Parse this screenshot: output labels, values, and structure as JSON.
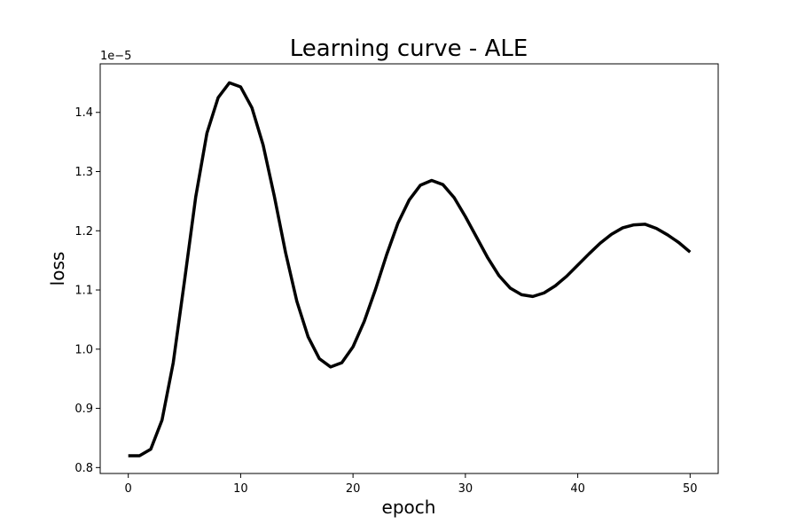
{
  "chart_data": {
    "type": "line",
    "title": "Learning curve - ALE",
    "xlabel": "epoch",
    "ylabel": "loss",
    "offset_text": "1e−5",
    "xlim": [
      -2.5,
      52.5
    ],
    "ylim": [
      0.79,
      1.482
    ],
    "xticks": [
      0,
      10,
      20,
      30,
      40,
      50
    ],
    "xtick_labels": [
      "0",
      "10",
      "20",
      "30",
      "40",
      "50"
    ],
    "yticks": [
      0.8,
      0.9,
      1.0,
      1.1,
      1.2,
      1.3,
      1.4
    ],
    "ytick_labels": [
      "0.8",
      "0.9",
      "1.0",
      "1.1",
      "1.2",
      "1.3",
      "1.4"
    ],
    "grid": false,
    "series": [
      {
        "color": "#000000",
        "x": [
          0,
          1,
          2,
          3,
          4,
          5,
          6,
          7,
          8,
          9,
          10,
          11,
          12,
          13,
          14,
          15,
          16,
          17,
          18,
          19,
          20,
          21,
          22,
          23,
          24,
          25,
          26,
          27,
          28,
          29,
          30,
          31,
          32,
          33,
          34,
          35,
          36,
          37,
          38,
          39,
          40,
          41,
          42,
          43,
          44,
          45,
          46,
          47,
          48,
          49,
          50
        ],
        "y": [
          0.82,
          0.82,
          0.831,
          0.88,
          0.977,
          1.115,
          1.257,
          1.365,
          1.425,
          1.45,
          1.443,
          1.408,
          1.345,
          1.258,
          1.163,
          1.081,
          1.021,
          0.984,
          0.97,
          0.977,
          1.004,
          1.047,
          1.101,
          1.16,
          1.213,
          1.252,
          1.277,
          1.285,
          1.278,
          1.256,
          1.224,
          1.189,
          1.154,
          1.124,
          1.103,
          1.092,
          1.089,
          1.095,
          1.107,
          1.123,
          1.142,
          1.161,
          1.179,
          1.194,
          1.205,
          1.21,
          1.211,
          1.204,
          1.193,
          1.18,
          1.164
        ]
      }
    ]
  }
}
